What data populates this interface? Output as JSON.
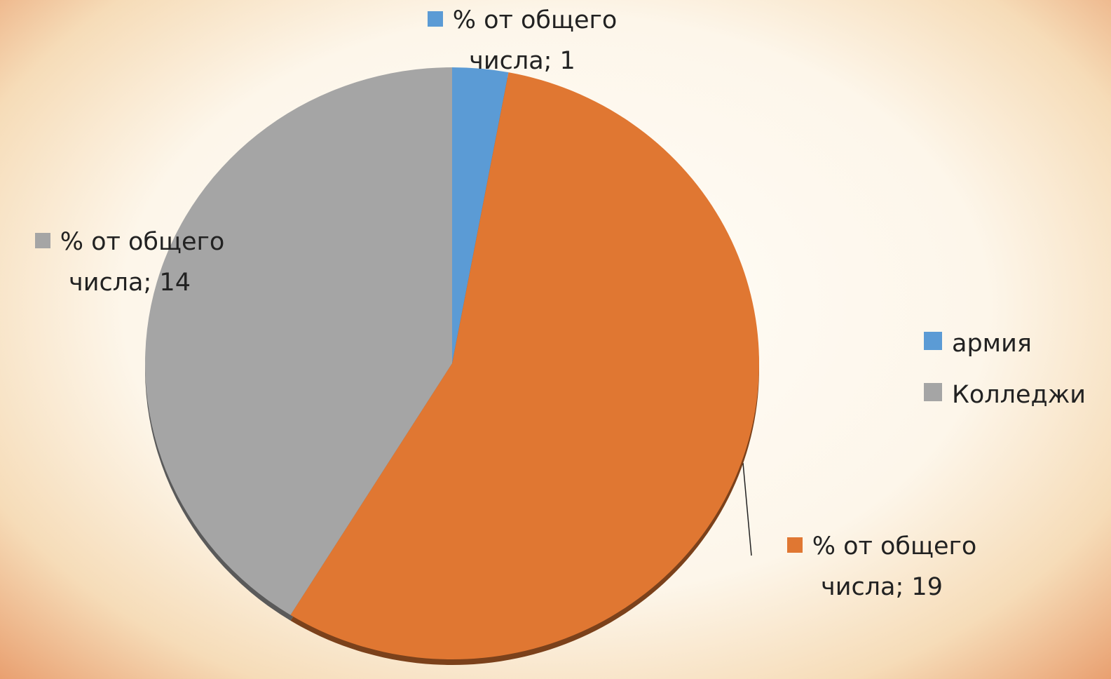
{
  "chart_data": {
    "type": "pie",
    "categories": [
      "армия",
      null,
      "Колледжи"
    ],
    "values": [
      1,
      19,
      14
    ],
    "value_labels": [
      "% от общего числа; 1",
      "% от общего числа; 19",
      "% от общего числа; 14"
    ],
    "colors": [
      "#5b9bd5",
      "#e07732",
      "#a5a5a5"
    ],
    "legend": "right"
  }
}
